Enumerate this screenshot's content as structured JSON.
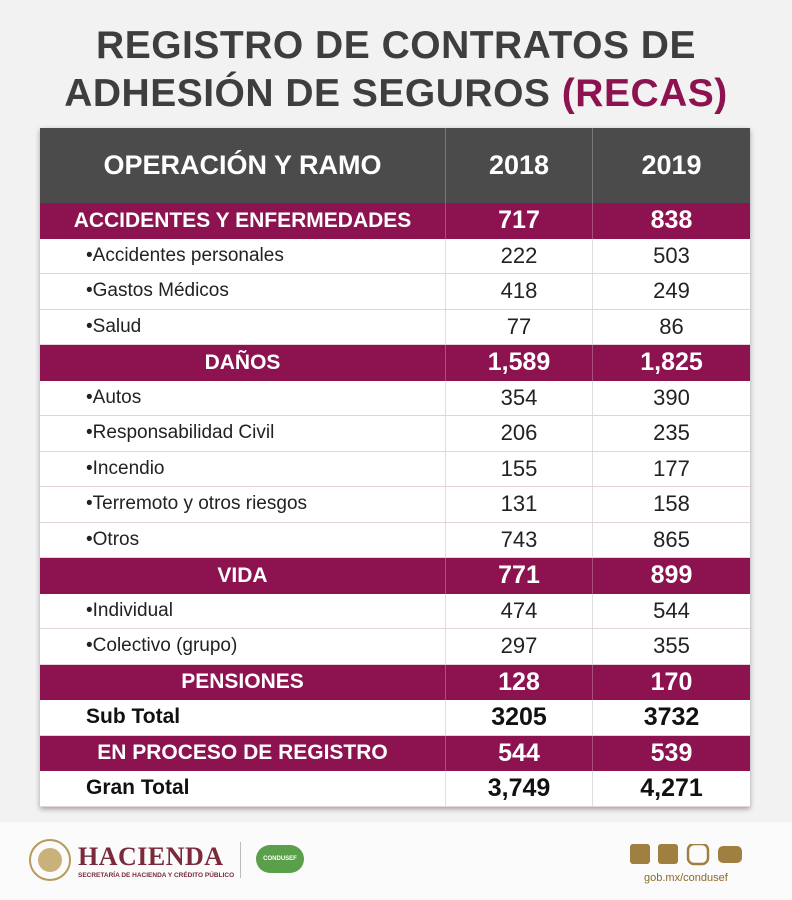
{
  "header": {
    "title_line1": "REGISTRO DE CONTRATOS DE",
    "title_line2": "ADHESIÓN DE SEGUROS",
    "title_highlight": "(RECAS)"
  },
  "table": {
    "columns": [
      "OPERACIÓN Y RAMO",
      "2018",
      "2019"
    ],
    "rows": [
      {
        "kind": "section",
        "cells": [
          "ACCIDENTES Y ENFERMEDADES",
          "717",
          "838"
        ]
      },
      {
        "kind": "item",
        "cells": [
          "•Accidentes personales",
          "222",
          "503"
        ]
      },
      {
        "kind": "item",
        "cells": [
          "•Gastos Médicos",
          "418",
          "249"
        ]
      },
      {
        "kind": "item",
        "cells": [
          "•Salud",
          "77",
          "86"
        ]
      },
      {
        "kind": "section",
        "cells": [
          "DAÑOS",
          "1,589",
          "1,825"
        ]
      },
      {
        "kind": "item",
        "cells": [
          "•Autos",
          "354",
          "390"
        ]
      },
      {
        "kind": "item",
        "cells": [
          "•Responsabilidad Civil",
          "206",
          "235"
        ]
      },
      {
        "kind": "item",
        "cells": [
          "•Incendio",
          "155",
          "177"
        ]
      },
      {
        "kind": "item",
        "cells": [
          "•Terremoto y otros riesgos",
          "131",
          "158"
        ]
      },
      {
        "kind": "item",
        "cells": [
          "•Otros",
          "743",
          "865"
        ]
      },
      {
        "kind": "section",
        "cells": [
          "VIDA",
          "771",
          "899"
        ]
      },
      {
        "kind": "item",
        "cells": [
          "•Individual",
          "474",
          "544"
        ]
      },
      {
        "kind": "item",
        "cells": [
          "•Colectivo (grupo)",
          "297",
          "355"
        ]
      },
      {
        "kind": "section",
        "cells": [
          "PENSIONES",
          "128",
          "170"
        ]
      },
      {
        "kind": "total",
        "cells": [
          "Sub Total",
          "3205",
          "3732"
        ]
      },
      {
        "kind": "section",
        "cells": [
          "EN PROCESO DE REGISTRO",
          "544",
          "539"
        ]
      },
      {
        "kind": "total",
        "cells": [
          "Gran Total",
          "3,749",
          "4,271"
        ]
      }
    ]
  },
  "footer": {
    "brand": "HACIENDA",
    "brand_sub": "SECRETARÍA DE HACIENDA Y CRÉDITO PÚBLICO",
    "partner": "CONDUSEF",
    "website": "gob.mx/condusef"
  }
}
